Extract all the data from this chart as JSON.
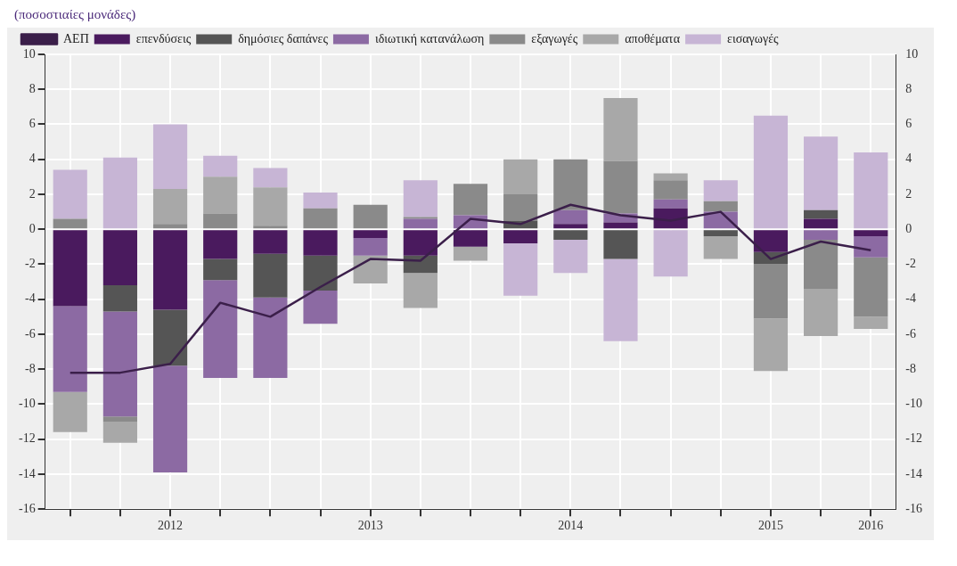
{
  "chart_data": {
    "type": "bar",
    "subtitle": "(ποσοστιαίες μονάδες)",
    "stacked": true,
    "categories": [
      null,
      null,
      "2012",
      null,
      null,
      null,
      "2013",
      null,
      null,
      null,
      "2014",
      null,
      null,
      null,
      "2015",
      null,
      "2016"
    ],
    "series": [
      {
        "name": "ΑΕΠ",
        "type": "line",
        "color": "#3b1f4a",
        "values": [
          -8.2,
          -8.2,
          -7.7,
          -4.2,
          -5.0,
          -3.3,
          -1.7,
          -1.8,
          0.6,
          0.3,
          1.4,
          0.8,
          0.5,
          1.0,
          -1.7,
          -0.7,
          -1.2
        ]
      },
      {
        "name": "επενδύσεις",
        "color": "#4a1a5e",
        "values": [
          -4.4,
          -3.2,
          -4.6,
          -1.7,
          -1.4,
          -1.5,
          -0.5,
          -1.5,
          -1.0,
          -0.8,
          0.3,
          0.4,
          1.2,
          0,
          -1.3,
          0.6,
          -0.4
        ]
      },
      {
        "name": "δημόσιες δαπάνες",
        "color": "#555555",
        "values": [
          0,
          -1.5,
          -3.2,
          -1.2,
          -2.5,
          -2.0,
          0,
          -1.0,
          0,
          0.5,
          -0.6,
          -1.7,
          0,
          -0.4,
          -0.7,
          0.5,
          0
        ]
      },
      {
        "name": "ιδιωτική κατανάλωση",
        "color": "#8c6aa3",
        "values": [
          -4.9,
          -6.0,
          -6.1,
          -5.6,
          -4.6,
          -1.9,
          -1.0,
          0.6,
          0.8,
          0,
          0.8,
          0.5,
          0.5,
          1.0,
          0,
          -0.6,
          -1.2
        ]
      },
      {
        "name": "εξαγωγές",
        "color": "#8a8a8a",
        "values": [
          0.6,
          -0.3,
          0.3,
          0.9,
          0.2,
          1.2,
          1.4,
          0.1,
          1.8,
          1.5,
          2.9,
          3.0,
          1.1,
          0.6,
          -3.1,
          -2.8,
          -3.4
        ]
      },
      {
        "name": "αποθέματα",
        "color": "#a8a8a8",
        "values": [
          -2.3,
          -1.2,
          2.0,
          2.1,
          2.2,
          0,
          -1.6,
          -2.0,
          -0.8,
          2.0,
          0,
          3.6,
          0.4,
          -1.3,
          -3.0,
          -2.7,
          -0.7
        ]
      },
      {
        "name": "εισαγωγές",
        "color": "#c7b5d5",
        "values": [
          2.8,
          4.1,
          3.7,
          1.2,
          1.1,
          0.9,
          0,
          2.1,
          0,
          -3.0,
          -1.9,
          -4.7,
          -2.7,
          1.2,
          6.5,
          4.2,
          4.4
        ]
      }
    ],
    "ylim": [
      -16,
      10
    ],
    "yticks": [
      -16,
      -14,
      -12,
      -10,
      -8,
      -6,
      -4,
      -2,
      0,
      2,
      4,
      6,
      8,
      10
    ],
    "y2lim": [
      -16,
      10
    ],
    "y2ticks": [
      -16,
      -14,
      -12,
      -10,
      -8,
      -6,
      -4,
      -2,
      0,
      2,
      4,
      6,
      8,
      10
    ],
    "grid": true,
    "legend": "top left"
  }
}
